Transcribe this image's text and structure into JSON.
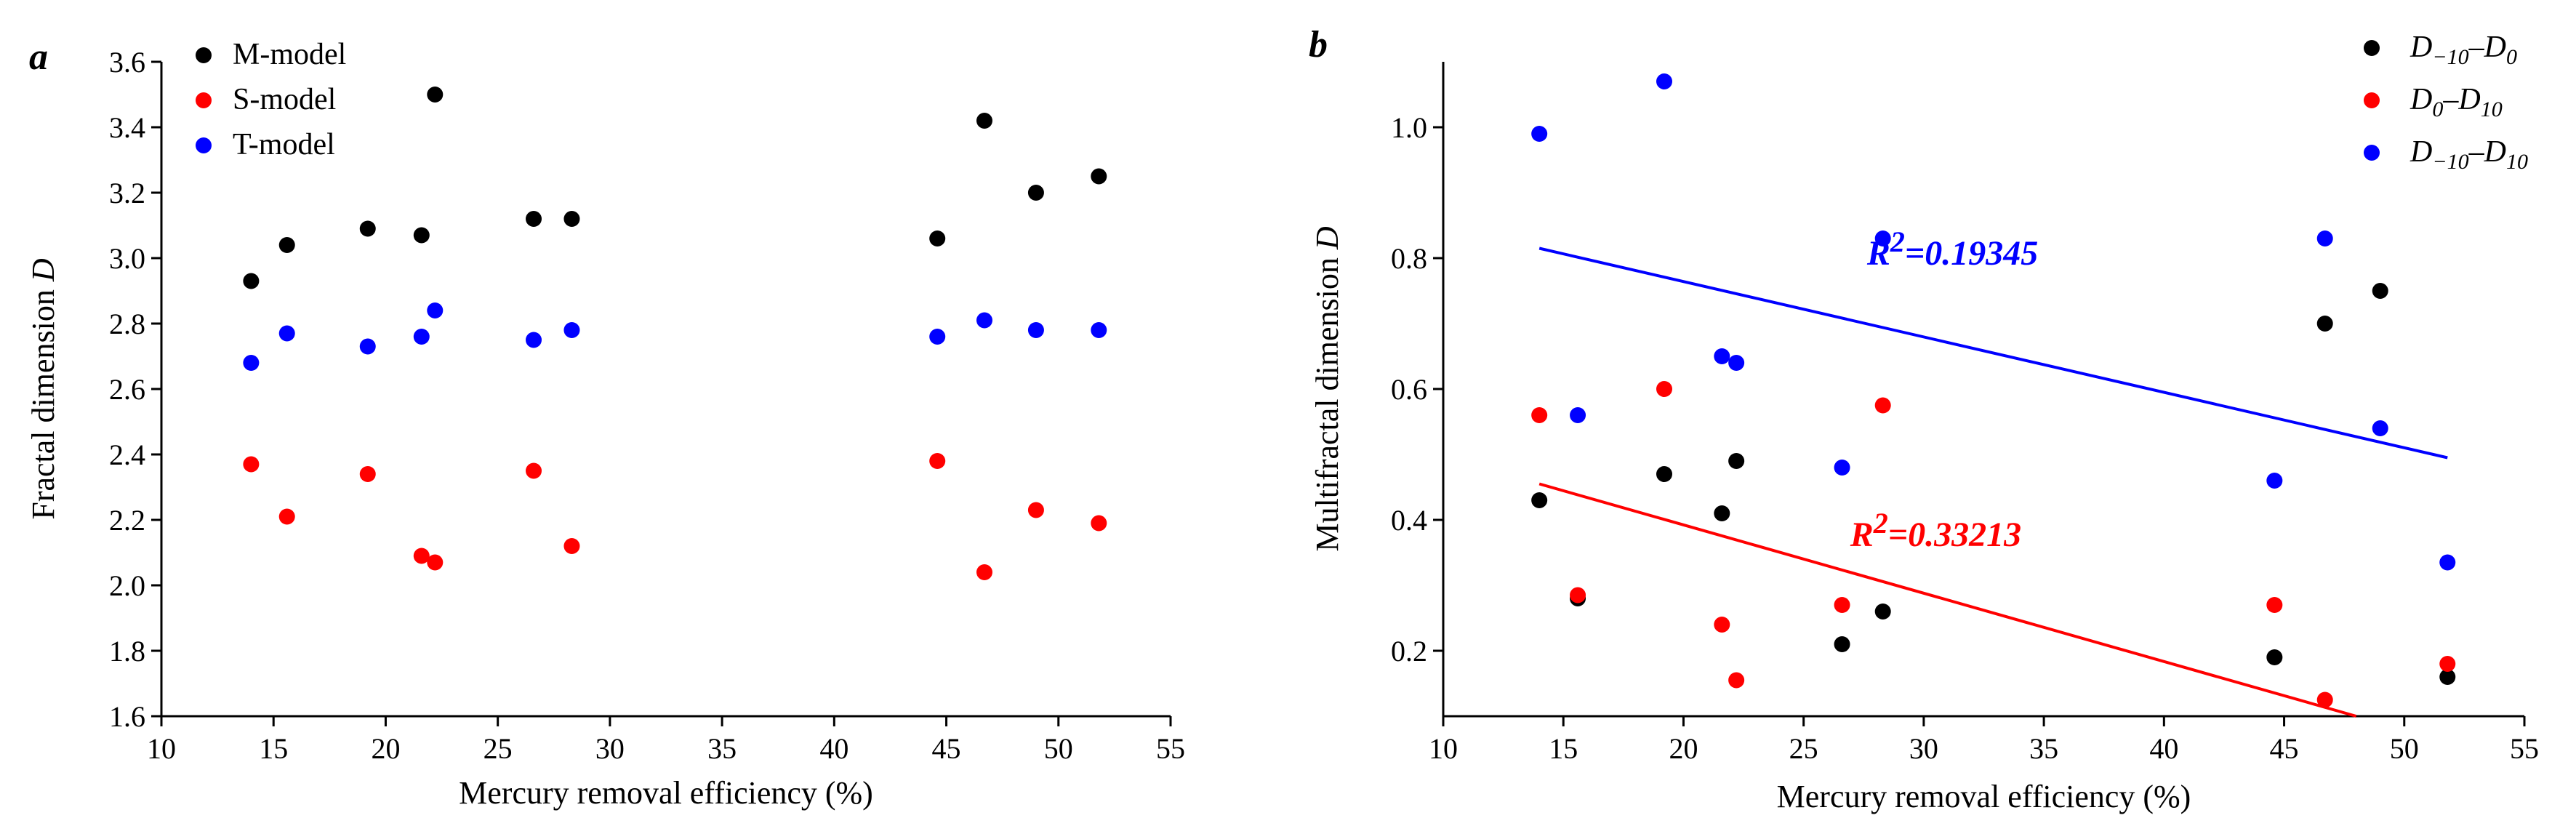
{
  "chart_data": [
    {
      "panel_label": "a",
      "type": "scatter",
      "title": "",
      "xlabel": "Mercury removal efficiency (%)",
      "ylabel": "Fractal dimension D",
      "xlim": [
        10,
        55
      ],
      "ylim": [
        1.6,
        3.6
      ],
      "xticks": [
        "10",
        "15",
        "20",
        "25",
        "30",
        "35",
        "40",
        "45",
        "50",
        "55"
      ],
      "yticks": [
        "1.6",
        "1.8",
        "2.0",
        "2.2",
        "2.4",
        "2.6",
        "2.8",
        "3.0",
        "3.2",
        "3.4",
        "3.6"
      ],
      "legend_position": "top-left",
      "series": [
        {
          "name": "M-model",
          "color": "#000000",
          "points": [
            [
              14.0,
              2.93
            ],
            [
              15.6,
              3.04
            ],
            [
              19.2,
              3.09
            ],
            [
              21.6,
              3.07
            ],
            [
              22.2,
              3.5
            ],
            [
              26.6,
              3.12
            ],
            [
              28.3,
              3.12
            ],
            [
              44.6,
              3.06
            ],
            [
              46.7,
              3.42
            ],
            [
              49.0,
              3.2
            ],
            [
              51.8,
              3.25
            ]
          ]
        },
        {
          "name": "S-model",
          "color": "#ff0000",
          "points": [
            [
              14.0,
              2.37
            ],
            [
              15.6,
              2.21
            ],
            [
              19.2,
              2.34
            ],
            [
              21.6,
              2.09
            ],
            [
              22.2,
              2.07
            ],
            [
              26.6,
              2.35
            ],
            [
              28.3,
              2.12
            ],
            [
              44.6,
              2.38
            ],
            [
              46.7,
              2.04
            ],
            [
              49.0,
              2.23
            ],
            [
              51.8,
              2.19
            ]
          ]
        },
        {
          "name": "T-model",
          "color": "#0000ff",
          "points": [
            [
              14.0,
              2.68
            ],
            [
              15.6,
              2.77
            ],
            [
              19.2,
              2.73
            ],
            [
              21.6,
              2.76
            ],
            [
              22.2,
              2.84
            ],
            [
              26.6,
              2.75
            ],
            [
              28.3,
              2.78
            ],
            [
              44.6,
              2.76
            ],
            [
              46.7,
              2.81
            ],
            [
              49.0,
              2.78
            ],
            [
              51.8,
              2.78
            ]
          ]
        }
      ]
    },
    {
      "panel_label": "b",
      "type": "scatter",
      "title": "",
      "xlabel": "Mercury removal efficiency (%)",
      "ylabel": "Multifractal dimension D",
      "xlim": [
        10,
        55
      ],
      "ylim": [
        0.1,
        1.1
      ],
      "xticks": [
        "10",
        "15",
        "20",
        "25",
        "30",
        "35",
        "40",
        "45",
        "50",
        "55"
      ],
      "yticks": [
        "0.2",
        "0.4",
        "0.6",
        "0.8",
        "1.0"
      ],
      "legend_position": "top-right",
      "series": [
        {
          "name_main": "D",
          "name_parts": [
            {
              "t": "D",
              "sub": false
            },
            {
              "t": "−10",
              "sub": true
            },
            {
              "t": "–D",
              "sub": false
            },
            {
              "t": "0",
              "sub": true
            }
          ],
          "color": "#000000",
          "points": [
            [
              14.0,
              0.43
            ],
            [
              15.6,
              0.28
            ],
            [
              19.2,
              0.47
            ],
            [
              21.6,
              0.41
            ],
            [
              22.2,
              0.49
            ],
            [
              26.6,
              0.21
            ],
            [
              28.3,
              0.26
            ],
            [
              44.6,
              0.19
            ],
            [
              46.7,
              0.7
            ],
            [
              49.0,
              0.75
            ],
            [
              51.8,
              0.16
            ]
          ]
        },
        {
          "name_main": "D",
          "name_parts": [
            {
              "t": "D",
              "sub": false
            },
            {
              "t": "0",
              "sub": true
            },
            {
              "t": "–D",
              "sub": false
            },
            {
              "t": "10",
              "sub": true
            }
          ],
          "color": "#ff0000",
          "points": [
            [
              14.0,
              0.56
            ],
            [
              15.6,
              0.285
            ],
            [
              19.2,
              0.6
            ],
            [
              21.6,
              0.24
            ],
            [
              22.2,
              0.155
            ],
            [
              26.6,
              0.27
            ],
            [
              28.3,
              0.575
            ],
            [
              44.6,
              0.27
            ],
            [
              46.7,
              0.125
            ],
            [
              51.8,
              0.18
            ]
          ],
          "trendline": {
            "x": [
              14.0,
              48.0
            ],
            "y": [
              0.455,
              0.1
            ],
            "label": "R",
            "label_sup": "2",
            "label_rest": "=0.33213",
            "label_at": [
              30.5,
              0.36
            ]
          }
        },
        {
          "name_main": "D",
          "name_parts": [
            {
              "t": "D",
              "sub": false
            },
            {
              "t": "−10",
              "sub": true
            },
            {
              "t": "–D",
              "sub": false
            },
            {
              "t": "10",
              "sub": true
            }
          ],
          "color": "#0000ff",
          "points": [
            [
              14.0,
              0.99
            ],
            [
              15.6,
              0.56
            ],
            [
              19.2,
              1.07
            ],
            [
              21.6,
              0.65
            ],
            [
              22.2,
              0.64
            ],
            [
              26.6,
              0.48
            ],
            [
              28.3,
              0.83
            ],
            [
              44.6,
              0.46
            ],
            [
              46.7,
              0.83
            ],
            [
              49.0,
              0.54
            ],
            [
              51.8,
              0.335
            ]
          ],
          "trendline": {
            "x": [
              14.0,
              51.8
            ],
            "y": [
              0.815,
              0.495
            ],
            "label": "R",
            "label_sup": "2",
            "label_rest": "=0.19345",
            "label_at": [
              31.2,
              0.79
            ]
          }
        }
      ]
    }
  ]
}
